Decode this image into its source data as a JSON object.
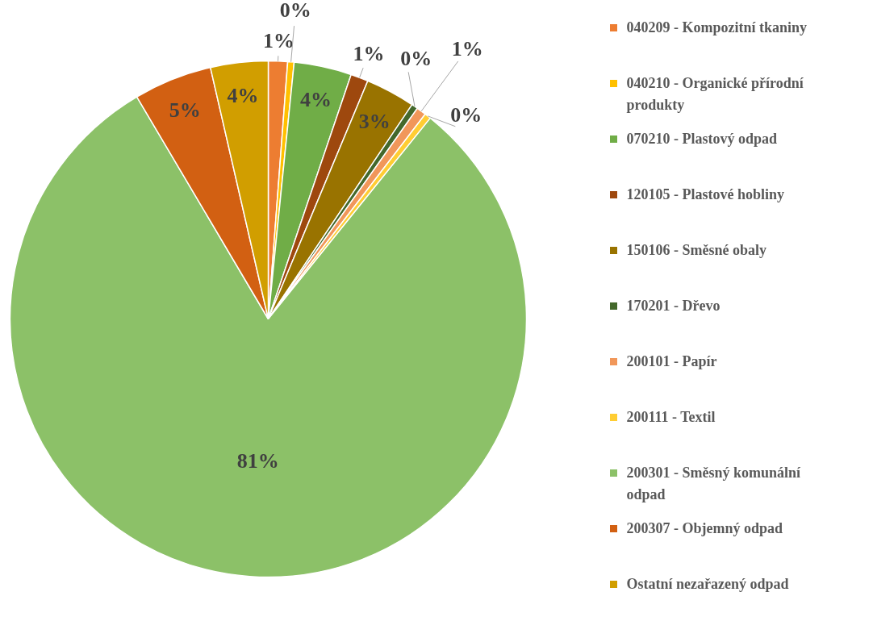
{
  "chart_data": {
    "type": "pie",
    "categories": [
      "040209 - Kompozitní tkaniny",
      "040210 - Organické přírodní produkty",
      "070210 - Plastový odpad",
      "120105 - Plastové hobliny",
      "150106 - Směsné obaly",
      "170201 - Dřevo",
      "200101 - Papír",
      "200111 - Textil",
      "200301 - Směsný komunální odpad",
      "200307 - Objemný odpad",
      "Ostatní nezařazený odpad"
    ],
    "values": [
      1.2,
      0.4,
      3.6,
      1.1,
      3.1,
      0.4,
      0.6,
      0.4,
      80.7,
      4.9,
      3.6
    ],
    "value_labels": [
      "1%",
      "0%",
      "4%",
      "1%",
      "3%",
      "0%",
      "1%",
      "0%",
      "81%",
      "5%",
      "4%"
    ],
    "colors": [
      "#ed7d31",
      "#ffc000",
      "#70ad47",
      "#9e480e",
      "#997300",
      "#43682b",
      "#f1975a",
      "#ffcd33",
      "#8cc168",
      "#d26012",
      "#d19e00"
    ],
    "legend": "right"
  }
}
